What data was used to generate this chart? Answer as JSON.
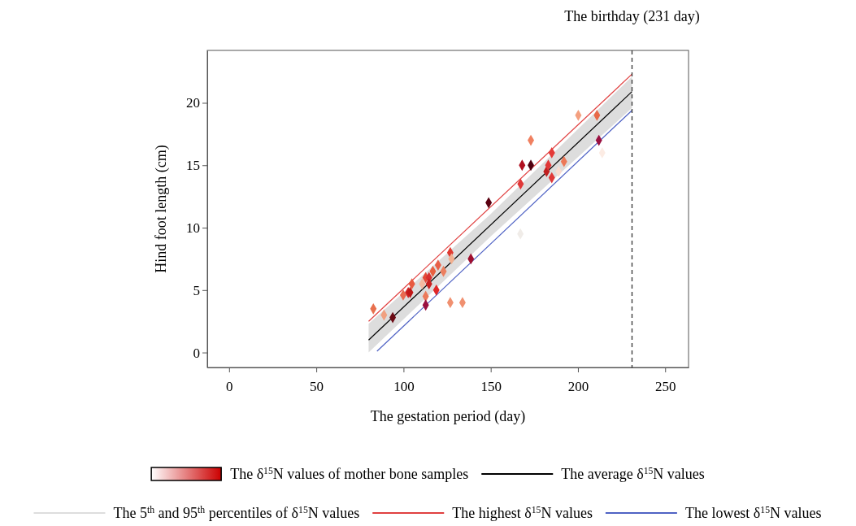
{
  "chart_data": {
    "type": "scatter",
    "xlabel": "The gestation period (day)",
    "ylabel": "Hind foot length (cm)",
    "xlim": [
      -12.5,
      263.4
    ],
    "ylim": [
      -1.2,
      24.2
    ],
    "xticks": [
      0,
      50,
      100,
      150,
      200,
      250
    ],
    "yticks": [
      0,
      5,
      10,
      15,
      20
    ],
    "grid": false,
    "legend": "bottom",
    "ref_lines": [
      {
        "axis": "x",
        "value": 231,
        "label": "The birthday (231 day)",
        "color": "#333333",
        "line_style": "dashed"
      }
    ],
    "series": [
      {
        "name": "The δ$^{15}$N values of mother bone samples",
        "marker": "diamond",
        "color": "#cc0000",
        "x": [
          82.7,
          88.8,
          93.8,
          99.8,
          102.7,
          103.8,
          104.8,
          110.7,
          112.7,
          112.7,
          112.7,
          114.6,
          114.6,
          116.8,
          118.8,
          119.8,
          122.9,
          126.8,
          127.5,
          126.8,
          133.8,
          138.6,
          148.8,
          167.1,
          168.0,
          173.0,
          173.0,
          182.0,
          183.0,
          185.0,
          185.0,
          188.9,
          192.0,
          200.2,
          210.9,
          212.0,
          213.9,
          167.0
        ],
        "values": [
          3.5,
          3.0,
          2.8,
          4.6,
          4.8,
          4.8,
          5.5,
          5.5,
          6.0,
          4.5,
          3.8,
          6.0,
          5.5,
          6.5,
          5.0,
          7.0,
          6.5,
          8.0,
          7.5,
          4.0,
          4.0,
          7.5,
          12.0,
          13.5,
          15.0,
          15.0,
          17.0,
          14.5,
          15.0,
          16.0,
          14.0,
          14.5,
          15.3,
          19.0,
          19.0,
          17.0,
          16.0,
          9.5
        ],
        "colors": [
          "#e8704e",
          "#f0a080",
          "#6b0a14",
          "#e86a50",
          "#d02020",
          "#c01818",
          "#e85a40",
          "#f4b8a0",
          "#e44a38",
          "#ec7a5a",
          "#9a1040",
          "#d83030",
          "#c82020",
          "#e86040",
          "#e02828",
          "#e86048",
          "#ec8060",
          "#e03a30",
          "#f2b090",
          "#f09070",
          "#f09070",
          "#a01030",
          "#5a0010",
          "#e03838",
          "#b01020",
          "#500010",
          "#f08060",
          "#c02020",
          "#e03838",
          "#e43a38",
          "#e03838",
          "#fadcd0",
          "#ec7858",
          "#f4a080",
          "#e86848",
          "#9a1040",
          "#fcece4",
          "#f0ece8"
        ]
      },
      {
        "name": "The average δ$^{15}$N values",
        "type": "line",
        "color": "#000000",
        "x": [
          80,
          231
        ],
        "values": [
          1.0,
          20.9
        ]
      },
      {
        "name": "The 5$^{th}$ and 95$^{th}$ percentiles of δ$^{15}$N values",
        "type": "line",
        "color": "#dddddd",
        "x": [
          80,
          150,
          231
        ],
        "values": [
          null,
          null,
          null
        ],
        "upper": [
          2.3,
          11.1,
          22.1
        ],
        "lower": [
          0,
          9.3,
          19.6
        ]
      },
      {
        "name": "The highest δ$^{15}$N values",
        "type": "line",
        "color": "#e04040",
        "x": [
          80,
          231
        ],
        "values": [
          2.5,
          22.3
        ]
      },
      {
        "name": "The lowest δ$^{15}$N values",
        "type": "line",
        "color": "#4f62c4",
        "x": [
          84.8,
          231
        ],
        "values": [
          0.1,
          19.4
        ]
      }
    ]
  }
}
